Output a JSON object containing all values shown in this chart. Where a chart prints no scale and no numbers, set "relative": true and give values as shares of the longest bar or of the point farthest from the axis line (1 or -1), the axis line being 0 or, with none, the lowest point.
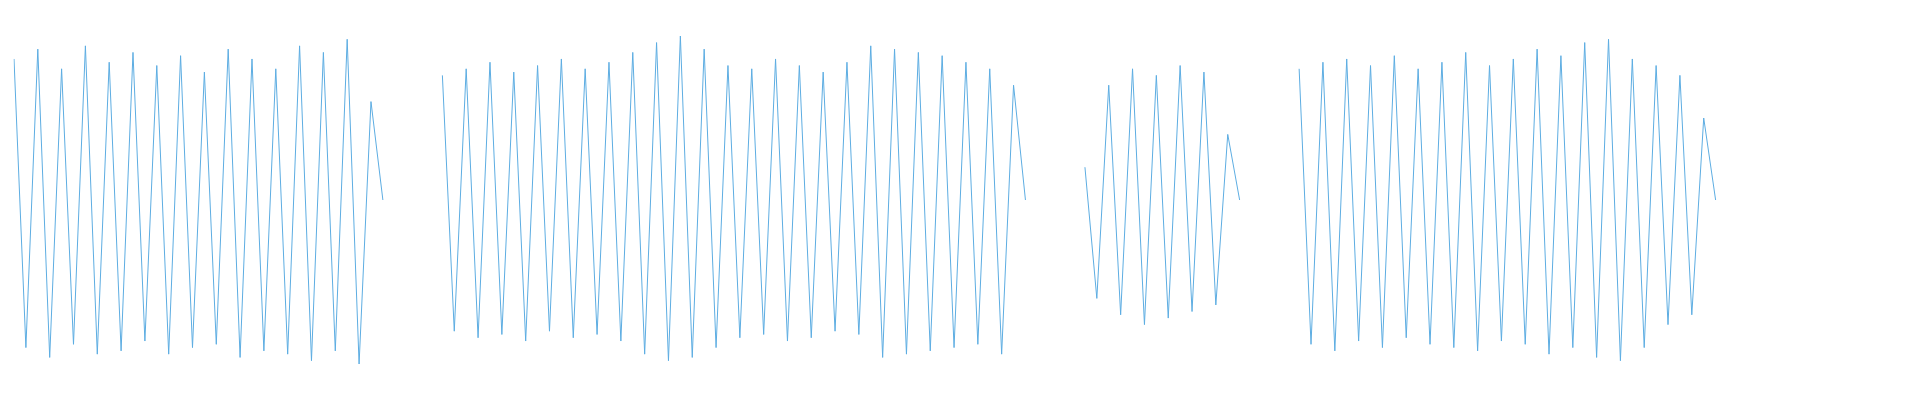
{
  "chart_data": {
    "type": "line",
    "relative": true,
    "categories": [
      null,
      null,
      null,
      null,
      null,
      null,
      null,
      null,
      null,
      null,
      null,
      null,
      null,
      null,
      null,
      null,
      null,
      null,
      null,
      null,
      null,
      null,
      null,
      null,
      null,
      null,
      null,
      null,
      null,
      null,
      null,
      null,
      null,
      null,
      null,
      null,
      null,
      null,
      null,
      null,
      null,
      null,
      null,
      null,
      null,
      null,
      null,
      null,
      null,
      null,
      null,
      null,
      null,
      null,
      null,
      null,
      null,
      null,
      null,
      null,
      null,
      null,
      null,
      null,
      null,
      null,
      null,
      null,
      null,
      null,
      null,
      null,
      null,
      null,
      null,
      null,
      null,
      null,
      null,
      null,
      null,
      null,
      null,
      null,
      null,
      null,
      null,
      null,
      null,
      null,
      null,
      null,
      null,
      null,
      null,
      null,
      null,
      null,
      null,
      null,
      null,
      null,
      null,
      null,
      null,
      null,
      null,
      null,
      null,
      null,
      null,
      null,
      null,
      null,
      null,
      null,
      null,
      null,
      null,
      null,
      null,
      null,
      null,
      null,
      null,
      null,
      null,
      null,
      null,
      null,
      null,
      null,
      null,
      null,
      null,
      null,
      null,
      null,
      null,
      null,
      null,
      null,
      null,
      null,
      null,
      null,
      null,
      null,
      null,
      null,
      null,
      null,
      null,
      null,
      null,
      null,
      null,
      null,
      null,
      null
    ],
    "series": [
      {
        "color": "#5dade2",
        "values": [
          0.93,
          0.05,
          0.96,
          0.02,
          0.9,
          0.06,
          0.97,
          0.03,
          0.92,
          0.04,
          0.95,
          0.07,
          0.91,
          0.03,
          0.94,
          0.05,
          0.89,
          0.06,
          0.96,
          0.02,
          0.93,
          0.04,
          0.9,
          0.03,
          0.97,
          0.01,
          0.95,
          0.04,
          0.99,
          0.0,
          0.8,
          0.5,
          null,
          null,
          null,
          null,
          null,
          null,
          null,
          null,
          null,
          null,
          null,
          null,
          null,
          null,
          null,
          null,
          null,
          null,
          null,
          null,
          null,
          null,
          null,
          null,
          null,
          null,
          null,
          null,
          null,
          null,
          null,
          null,
          null,
          null,
          null,
          null,
          null,
          null,
          null,
          null,
          null,
          null,
          null,
          null,
          null,
          null,
          null,
          null,
          null,
          null,
          null,
          null,
          null,
          null,
          null,
          null,
          null,
          null,
          null,
          null,
          null,
          null,
          null,
          null,
          null,
          null,
          null,
          null,
          null,
          null,
          null,
          null,
          null,
          null,
          null,
          null,
          null,
          null,
          null,
          null,
          null,
          null,
          null,
          null,
          null,
          null,
          null,
          null,
          null,
          null,
          null,
          null,
          null,
          null,
          null,
          null,
          null,
          null,
          null,
          null,
          null,
          null,
          null,
          null,
          null,
          null,
          null,
          null,
          null,
          null,
          null,
          null,
          null,
          null,
          null,
          null,
          null,
          null,
          null,
          null,
          null,
          null,
          null,
          null,
          null,
          null,
          null,
          null
        ]
      },
      {
        "color": "#5dade2",
        "values": [
          null,
          null,
          null,
          null,
          null,
          null,
          null,
          null,
          null,
          null,
          null,
          null,
          null,
          null,
          null,
          null,
          null,
          null,
          null,
          null,
          null,
          null,
          null,
          null,
          null,
          null,
          null,
          null,
          null,
          null,
          null,
          null,
          null,
          null,
          null,
          null,
          0.88,
          0.1,
          0.9,
          0.08,
          0.92,
          0.09,
          0.89,
          0.07,
          0.91,
          0.1,
          0.93,
          0.08,
          0.9,
          0.09,
          0.92,
          0.07,
          0.95,
          0.03,
          0.98,
          0.01,
          1.0,
          0.02,
          0.96,
          0.05,
          0.91,
          0.08,
          0.9,
          0.09,
          0.93,
          0.07,
          0.91,
          0.08,
          0.89,
          0.1,
          0.92,
          0.09,
          0.97,
          0.02,
          0.96,
          0.03,
          0.95,
          0.04,
          0.94,
          0.05,
          0.92,
          0.06,
          0.9,
          0.03,
          0.85,
          0.5,
          null,
          null,
          null,
          null,
          null,
          null,
          null,
          null,
          null,
          null,
          null,
          null,
          null,
          null,
          null,
          null,
          null,
          null,
          null,
          null,
          null,
          null,
          null,
          null,
          null,
          null,
          null,
          null,
          null,
          null,
          null,
          null,
          null,
          null,
          null,
          null,
          null,
          null,
          null,
          null,
          null,
          null,
          null,
          null,
          null,
          null,
          null,
          null,
          null,
          null,
          null,
          null,
          null,
          null,
          null,
          null,
          null,
          null,
          null,
          null,
          null,
          null,
          null,
          null,
          null,
          null,
          null,
          null,
          null,
          null,
          null,
          null,
          null,
          null
        ]
      },
      {
        "color": "#5dade2",
        "values": [
          null,
          null,
          null,
          null,
          null,
          null,
          null,
          null,
          null,
          null,
          null,
          null,
          null,
          null,
          null,
          null,
          null,
          null,
          null,
          null,
          null,
          null,
          null,
          null,
          null,
          null,
          null,
          null,
          null,
          null,
          null,
          null,
          null,
          null,
          null,
          null,
          null,
          null,
          null,
          null,
          null,
          null,
          null,
          null,
          null,
          null,
          null,
          null,
          null,
          null,
          null,
          null,
          null,
          null,
          null,
          null,
          null,
          null,
          null,
          null,
          null,
          null,
          null,
          null,
          null,
          null,
          null,
          null,
          null,
          null,
          null,
          null,
          null,
          null,
          null,
          null,
          null,
          null,
          null,
          null,
          null,
          null,
          null,
          null,
          null,
          null,
          null,
          null,
          null,
          null,
          0.6,
          0.2,
          0.85,
          0.15,
          0.9,
          0.12,
          0.88,
          0.14,
          0.91,
          0.16,
          0.89,
          0.18,
          0.7,
          0.5,
          null,
          null,
          null,
          null,
          null,
          null,
          null,
          null,
          null,
          null,
          null,
          null,
          null,
          null,
          null,
          null,
          null,
          null,
          null,
          null,
          null,
          null,
          null,
          null,
          null,
          null,
          null,
          null,
          null,
          null,
          null,
          null,
          null,
          null,
          null,
          null,
          null,
          null,
          null,
          null,
          null,
          null,
          null,
          null,
          null,
          null,
          null,
          null,
          null,
          null,
          null,
          null,
          null,
          null,
          null,
          null
        ]
      },
      {
        "color": "#5dade2",
        "values": [
          null,
          null,
          null,
          null,
          null,
          null,
          null,
          null,
          null,
          null,
          null,
          null,
          null,
          null,
          null,
          null,
          null,
          null,
          null,
          null,
          null,
          null,
          null,
          null,
          null,
          null,
          null,
          null,
          null,
          null,
          null,
          null,
          null,
          null,
          null,
          null,
          null,
          null,
          null,
          null,
          null,
          null,
          null,
          null,
          null,
          null,
          null,
          null,
          null,
          null,
          null,
          null,
          null,
          null,
          null,
          null,
          null,
          null,
          null,
          null,
          null,
          null,
          null,
          null,
          null,
          null,
          null,
          null,
          null,
          null,
          null,
          null,
          null,
          null,
          null,
          null,
          null,
          null,
          null,
          null,
          null,
          null,
          null,
          null,
          null,
          null,
          null,
          null,
          null,
          null,
          null,
          null,
          null,
          null,
          null,
          null,
          null,
          null,
          null,
          null,
          null,
          null,
          null,
          null,
          null,
          null,
          null,
          null,
          0.9,
          0.06,
          0.92,
          0.04,
          0.93,
          0.07,
          0.91,
          0.05,
          0.94,
          0.08,
          0.9,
          0.06,
          0.92,
          0.05,
          0.95,
          0.04,
          0.91,
          0.07,
          0.93,
          0.06,
          0.96,
          0.03,
          0.94,
          0.05,
          0.98,
          0.02,
          0.99,
          0.01,
          0.93,
          0.05,
          0.91,
          0.12,
          0.88,
          0.15,
          0.75,
          0.5,
          null,
          null,
          null,
          null,
          null,
          null,
          null,
          null,
          null,
          null,
          null,
          null,
          null,
          null,
          null,
          null
        ]
      }
    ]
  }
}
